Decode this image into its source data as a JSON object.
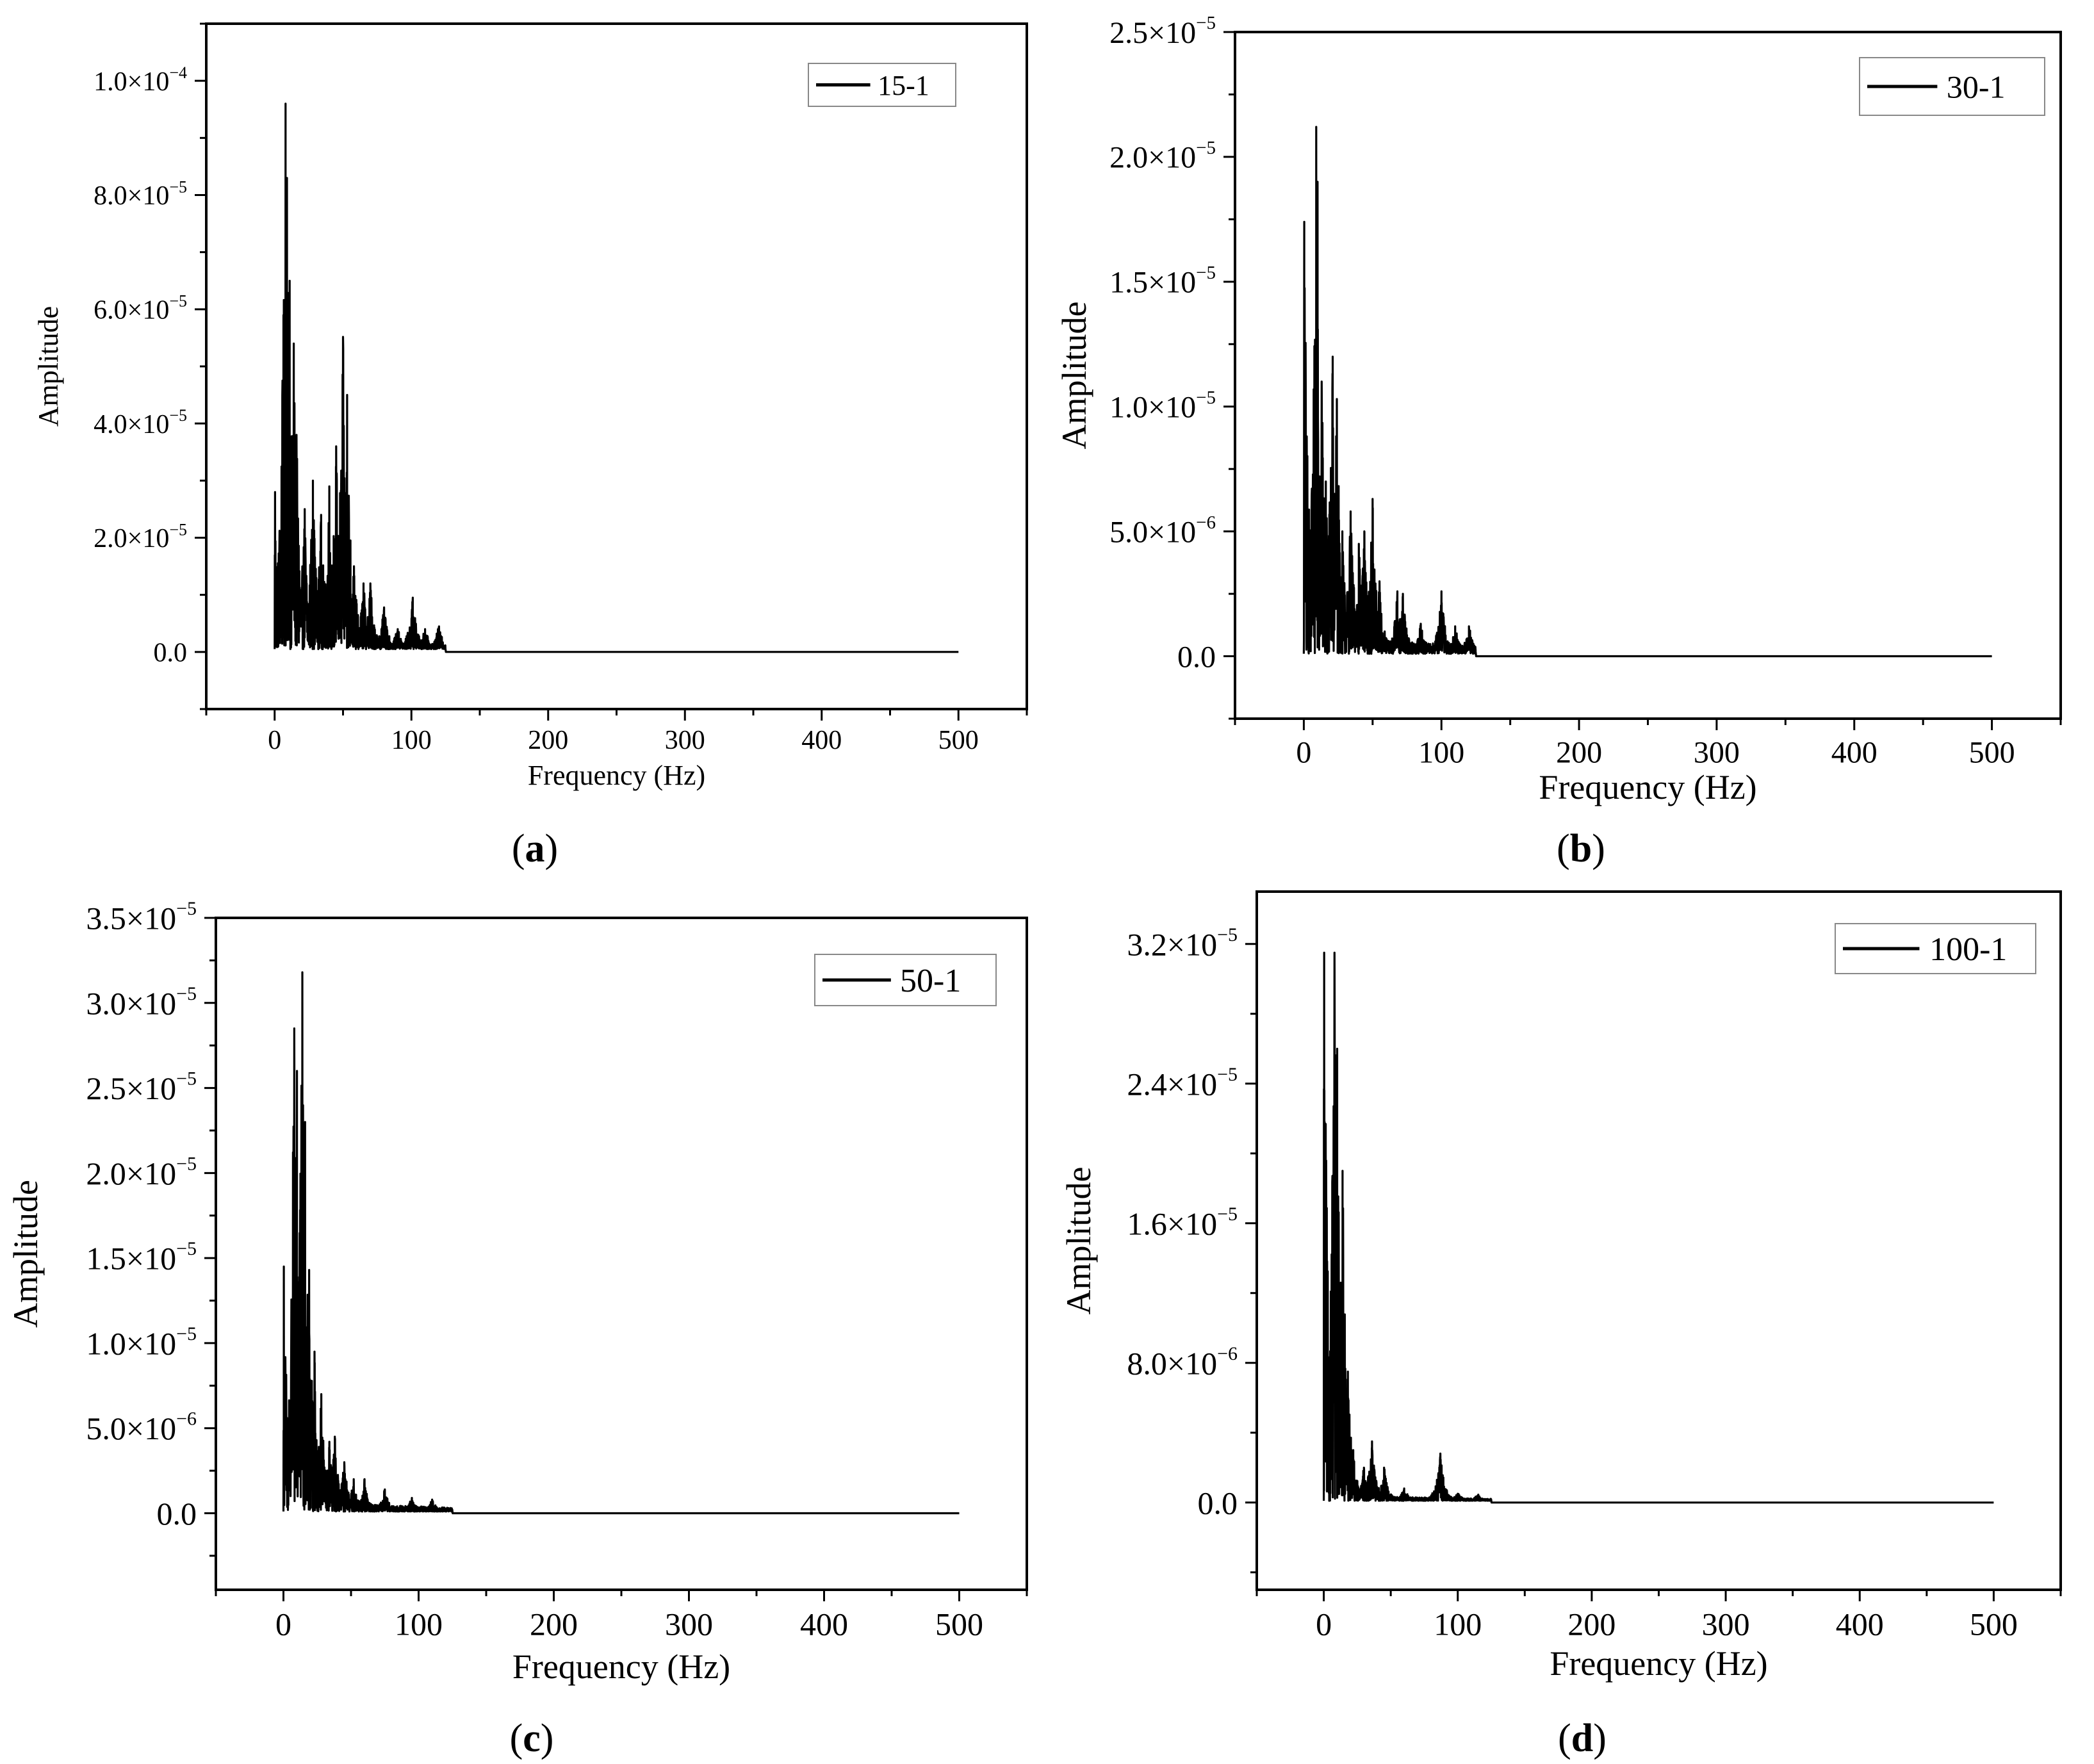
{
  "chart_data": [
    {
      "type": "line",
      "panel": "a",
      "caption_paren_open": "(",
      "caption_letter": "a",
      "caption_paren_close": ")",
      "legend_label": "15-1",
      "xlabel": "Frequency (Hz)",
      "ylabel": "Amplitude",
      "xlim": [
        -50,
        550
      ],
      "ylim": [
        -1e-05,
        0.00011
      ],
      "xticks": [
        0,
        100,
        200,
        300,
        400,
        500
      ],
      "xtick_labels": [
        "0",
        "100",
        "200",
        "300",
        "400",
        "500"
      ],
      "yticks": [
        0,
        2e-05,
        4e-05,
        6e-05,
        8e-05,
        0.0001
      ],
      "ytick_labels": [
        {
          "mant": "0.0",
          "exp": ""
        },
        {
          "mant": "2.0×10",
          "exp": "−5"
        },
        {
          "mant": "4.0×10",
          "exp": "−5"
        },
        {
          "mant": "6.0×10",
          "exp": "−5"
        },
        {
          "mant": "8.0×10",
          "exp": "−5"
        },
        {
          "mant": "1.0×10",
          "exp": "−4"
        }
      ],
      "floor": 5e-07,
      "noise_max": 125,
      "tail_level": 2.5e-06,
      "peaks": [
        [
          0.3,
          2.8e-05
        ],
        [
          8,
          9.6e-05
        ],
        [
          9,
          8.3e-05
        ],
        [
          11,
          6.5e-05
        ],
        [
          14,
          5.4e-05
        ],
        [
          16,
          3.8e-05
        ],
        [
          22,
          2.5e-05
        ],
        [
          28,
          3e-05
        ],
        [
          34,
          2.4e-05
        ],
        [
          40,
          2.9e-05
        ],
        [
          45,
          3.6e-05
        ],
        [
          50,
          5.5e-05
        ],
        [
          53,
          4.5e-05
        ],
        [
          58,
          1.5e-05
        ],
        [
          65,
          1.2e-05
        ],
        [
          70,
          1.2e-05
        ],
        [
          80,
          7.5e-06
        ],
        [
          90,
          4e-06
        ],
        [
          101,
          9.5e-06
        ],
        [
          110,
          4e-06
        ],
        [
          120,
          4.3e-06
        ]
      ]
    },
    {
      "type": "line",
      "panel": "b",
      "caption_paren_open": "(",
      "caption_letter": "b",
      "caption_paren_close": ")",
      "legend_label": "30-1",
      "xlabel": "Frequency (Hz)",
      "ylabel": "Amplitude",
      "xlim": [
        -50,
        550
      ],
      "ylim": [
        -2.5e-06,
        2.5e-05
      ],
      "xticks": [
        0,
        100,
        200,
        300,
        400,
        500
      ],
      "xtick_labels": [
        "0",
        "100",
        "200",
        "300",
        "400",
        "500"
      ],
      "yticks": [
        0,
        5e-06,
        1e-05,
        1.5e-05,
        2e-05,
        2.5e-05
      ],
      "ytick_labels": [
        {
          "mant": "0.0",
          "exp": ""
        },
        {
          "mant": "5.0×10",
          "exp": "−6"
        },
        {
          "mant": "1.0×10",
          "exp": "−5"
        },
        {
          "mant": "1.5×10",
          "exp": "−5"
        },
        {
          "mant": "2.0×10",
          "exp": "−5"
        },
        {
          "mant": "2.5×10",
          "exp": "−5"
        }
      ],
      "floor": 1e-07,
      "noise_max": 125,
      "tail_level": 8e-07,
      "peaks": [
        [
          0.3,
          1.74e-05
        ],
        [
          9,
          2.12e-05
        ],
        [
          10,
          1.9e-05
        ],
        [
          13,
          1.1e-05
        ],
        [
          16,
          7e-06
        ],
        [
          21,
          1.2e-05
        ],
        [
          24,
          1.03e-05
        ],
        [
          28,
          5e-06
        ],
        [
          34,
          5.8e-06
        ],
        [
          40,
          4.5e-06
        ],
        [
          44,
          5e-06
        ],
        [
          50,
          6.3e-06
        ],
        [
          55,
          3e-06
        ],
        [
          68,
          2.6e-06
        ],
        [
          72,
          2.5e-06
        ],
        [
          85,
          1.3e-06
        ],
        [
          100,
          2.6e-06
        ],
        [
          110,
          1.2e-06
        ],
        [
          120,
          1.2e-06
        ]
      ]
    },
    {
      "type": "line",
      "panel": "c",
      "caption_paren_open": "(",
      "caption_letter": "c",
      "caption_paren_close": ")",
      "legend_label": "50-1",
      "xlabel": "Frequency (Hz)",
      "ylabel": "Amplitude",
      "xlim": [
        -50,
        550
      ],
      "ylim": [
        -4.5e-06,
        3.5e-05
      ],
      "xticks": [
        0,
        100,
        200,
        300,
        400,
        500
      ],
      "xtick_labels": [
        "0",
        "100",
        "200",
        "300",
        "400",
        "500"
      ],
      "yticks": [
        0,
        5e-06,
        1e-05,
        1.5e-05,
        2e-05,
        2.5e-05,
        3e-05,
        3.5e-05
      ],
      "ytick_labels": [
        {
          "mant": "0.0",
          "exp": ""
        },
        {
          "mant": "5.0×10",
          "exp": "−6"
        },
        {
          "mant": "1.0×10",
          "exp": "−5"
        },
        {
          "mant": "1.5×10",
          "exp": "−5"
        },
        {
          "mant": "2.0×10",
          "exp": "−5"
        },
        {
          "mant": "2.5×10",
          "exp": "−5"
        },
        {
          "mant": "3.0×10",
          "exp": "−5"
        },
        {
          "mant": "3.5×10",
          "exp": "−5"
        }
      ],
      "floor": 1e-07,
      "noise_max": 125,
      "tail_level": 6e-07,
      "peaks": [
        [
          0.3,
          1.45e-05
        ],
        [
          8,
          2.85e-05
        ],
        [
          10,
          2.6e-05
        ],
        [
          14,
          3.18e-05
        ],
        [
          16,
          2.3e-05
        ],
        [
          19,
          1.43e-05
        ],
        [
          23,
          9.5e-06
        ],
        [
          28,
          7e-06
        ],
        [
          34,
          4.2e-06
        ],
        [
          38,
          4.5e-06
        ],
        [
          45,
          3e-06
        ],
        [
          52,
          2e-06
        ],
        [
          60,
          2e-06
        ],
        [
          75,
          1.4e-06
        ],
        [
          95,
          9e-07
        ],
        [
          110,
          8e-07
        ]
      ]
    },
    {
      "type": "line",
      "panel": "d",
      "caption_paren_open": "(",
      "caption_letter": "d",
      "caption_paren_close": ")",
      "legend_label": "100-1",
      "xlabel": "Frequency (Hz)",
      "ylabel": "Amplitude",
      "xlim": [
        -50,
        550
      ],
      "ylim": [
        -5e-06,
        3.5e-05
      ],
      "xticks": [
        0,
        100,
        200,
        300,
        400,
        500
      ],
      "xtick_labels": [
        "0",
        "100",
        "200",
        "300",
        "400",
        "500"
      ],
      "yticks": [
        0,
        8e-06,
        1.6e-05,
        2.4e-05,
        3.2e-05
      ],
      "ytick_labels": [
        {
          "mant": "0.0",
          "exp": ""
        },
        {
          "mant": "8.0×10",
          "exp": "−6"
        },
        {
          "mant": "1.6×10",
          "exp": "−5"
        },
        {
          "mant": "2.4×10",
          "exp": "−5"
        },
        {
          "mant": "3.2×10",
          "exp": "−5"
        }
      ],
      "floor": 1e-07,
      "noise_max": 125,
      "tail_level": 3e-07,
      "peaks": [
        [
          0.3,
          3.15e-05
        ],
        [
          8,
          3.15e-05
        ],
        [
          10,
          2.6e-05
        ],
        [
          14,
          1.9e-05
        ],
        [
          18,
          7.5e-06
        ],
        [
          22,
          3e-06
        ],
        [
          30,
          2e-06
        ],
        [
          36,
          3.5e-06
        ],
        [
          45,
          2e-06
        ],
        [
          60,
          8e-07
        ],
        [
          87,
          2.8e-06
        ],
        [
          100,
          5e-07
        ],
        [
          115,
          4e-07
        ]
      ]
    }
  ]
}
